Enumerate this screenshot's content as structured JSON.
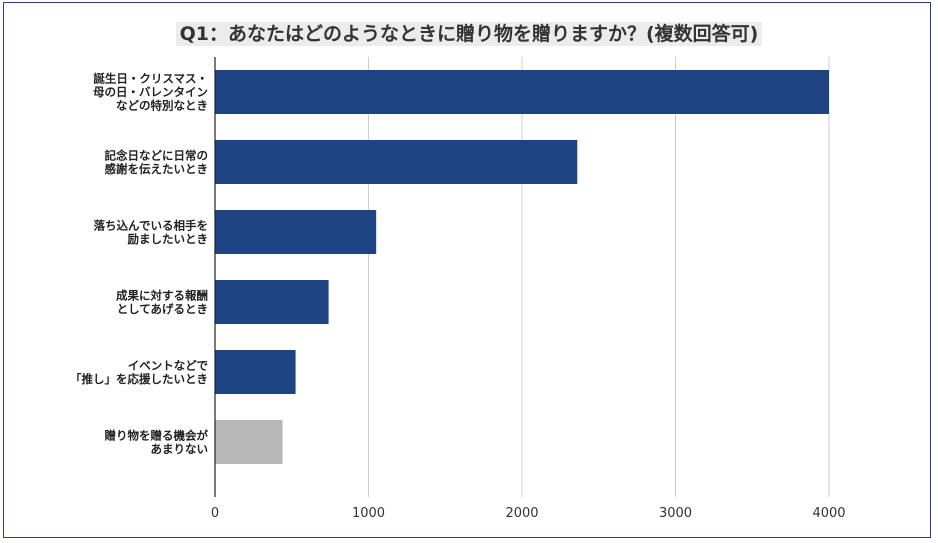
{
  "title": "Q1：あなたはどのようなときに贈り物を贈りますか？(複数回答可)",
  "chart_data": {
    "type": "bar",
    "orientation": "horizontal",
    "title": "Q1：あなたはどのようなときに贈り物を贈りますか？(複数回答可)",
    "categories": [
      [
        "誕生日・クリスマス・",
        "母の日・バレンタイン",
        "などの特別なとき"
      ],
      [
        "記念日などに日常の",
        "感謝を伝えたいとき"
      ],
      [
        "落ち込んでいる相手を",
        "励ましたいとき"
      ],
      [
        "成果に対する報酬",
        "としてあげるとき"
      ],
      [
        "イベントなどで",
        "「推し」を応援したいとき"
      ],
      [
        "贈り物を贈る機会が",
        "あまりない"
      ]
    ],
    "values": [
      4000,
      2360,
      1050,
      740,
      525,
      440
    ],
    "colors": [
      "#1f4484",
      "#1f4484",
      "#1f4484",
      "#1f4484",
      "#1f4484",
      "#b8b8b8"
    ],
    "xlim": [
      0,
      4000
    ],
    "xticks": [
      "0",
      "1000",
      "2000",
      "3000",
      "4000"
    ],
    "grid": "vertical",
    "xlabel": "",
    "ylabel": ""
  }
}
